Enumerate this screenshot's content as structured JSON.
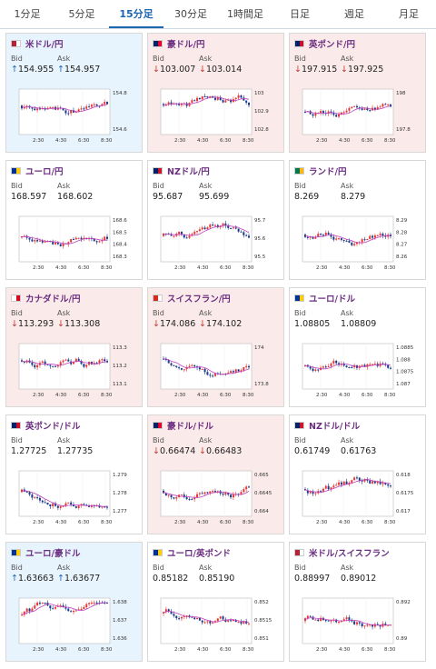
{
  "tabs": [
    "1分足",
    "5分足",
    "15分足",
    "30分足",
    "1時間足",
    "日足",
    "週足",
    "月足"
  ],
  "active_tab": 2,
  "time_labels": [
    "2:30",
    "4:30",
    "6:30",
    "8:30"
  ],
  "labels": {
    "bid": "Bid",
    "ask": "Ask"
  },
  "cards": [
    {
      "pair": "米ドル/円",
      "trend": "up",
      "bid": "154.955",
      "ask": "154.957",
      "ticks": [
        "154.8",
        "154.6"
      ],
      "flag": "us",
      "flag2": "jp",
      "colors": {
        "bg": "#e8f4fd"
      }
    },
    {
      "pair": "豪ドル/円",
      "trend": "down",
      "bid": "103.007",
      "ask": "103.014",
      "ticks": [
        "103",
        "102.9",
        "102.8"
      ],
      "flag": "au",
      "flag2": "jp"
    },
    {
      "pair": "英ポンド/円",
      "trend": "down",
      "bid": "197.915",
      "ask": "197.925",
      "ticks": [
        "198",
        "197.8"
      ],
      "flag": "gb",
      "flag2": "jp"
    },
    {
      "pair": "ユーロ/円",
      "trend": "flat",
      "bid": "168.597",
      "ask": "168.602",
      "ticks": [
        "168.6",
        "168.5",
        "168.4",
        "168.3"
      ],
      "flag": "eu",
      "flag2": "jp"
    },
    {
      "pair": "NZドル/円",
      "trend": "flat",
      "bid": "95.687",
      "ask": "95.699",
      "ticks": [
        "95.7",
        "95.6",
        "95.5"
      ],
      "flag": "nz",
      "flag2": "jp"
    },
    {
      "pair": "ランド/円",
      "trend": "flat",
      "bid": "8.269",
      "ask": "8.279",
      "ticks": [
        "8.29",
        "8.28",
        "8.27",
        "8.26"
      ],
      "flag": "za",
      "flag2": "jp"
    },
    {
      "pair": "カナダドル/円",
      "trend": "down",
      "bid": "113.293",
      "ask": "113.308",
      "ticks": [
        "113.3",
        "113.2",
        "113.1"
      ],
      "flag": "ca",
      "flag2": "jp"
    },
    {
      "pair": "スイスフラン/円",
      "trend": "down",
      "bid": "174.086",
      "ask": "174.102",
      "ticks": [
        "174",
        "173.8"
      ],
      "flag": "ch",
      "flag2": "jp"
    },
    {
      "pair": "ユーロ/ドル",
      "trend": "flat",
      "bid": "1.08805",
      "ask": "1.08809",
      "ticks": [
        "1.0885",
        "1.088",
        "1.0875",
        "1.087"
      ],
      "flag": "eu",
      "flag2": "us"
    },
    {
      "pair": "英ポンド/ドル",
      "trend": "flat",
      "bid": "1.27725",
      "ask": "1.27735",
      "ticks": [
        "1.279",
        "1.278",
        "1.277"
      ],
      "flag": "gb",
      "flag2": "us"
    },
    {
      "pair": "豪ドル/ドル",
      "trend": "down",
      "bid": "0.66474",
      "ask": "0.66483",
      "ticks": [
        "0.665",
        "0.6645",
        "0.664"
      ],
      "flag": "au",
      "flag2": "us"
    },
    {
      "pair": "NZドル/ドル",
      "trend": "flat",
      "bid": "0.61749",
      "ask": "0.61763",
      "ticks": [
        "0.618",
        "0.6175",
        "0.617"
      ],
      "flag": "nz",
      "flag2": "us"
    },
    {
      "pair": "ユーロ/豪ドル",
      "trend": "up",
      "bid": "1.63663",
      "ask": "1.63677",
      "ticks": [
        "1.638",
        "1.637",
        "1.636"
      ],
      "flag": "eu",
      "flag2": "au"
    },
    {
      "pair": "ユーロ/英ポンド",
      "trend": "flat",
      "bid": "0.85182",
      "ask": "0.85190",
      "ticks": [
        "0.852",
        "0.8515",
        "0.851"
      ],
      "flag": "eu",
      "flag2": "gb"
    },
    {
      "pair": "米ドル/スイスフラン",
      "trend": "flat",
      "bid": "0.88997",
      "ask": "0.89012",
      "ticks": [
        "0.892",
        "0.89"
      ],
      "flag": "us",
      "flag2": "ch"
    }
  ]
}
